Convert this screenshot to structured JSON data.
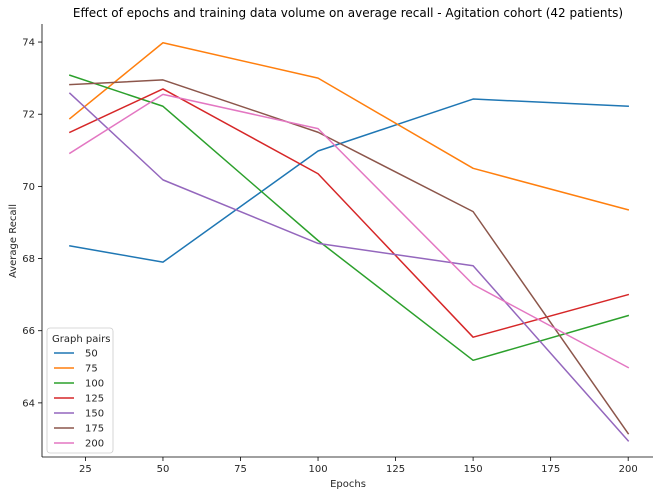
{
  "chart_data": {
    "type": "line",
    "title": "Effect of epochs and training data volume on average recall - Agitation cohort (42 patients)",
    "xlabel": "Epochs",
    "ylabel": "Average Recall",
    "x": [
      20,
      50,
      100,
      150,
      200
    ],
    "xlim": [
      11,
      208
    ],
    "ylim": [
      62.5,
      74.5
    ],
    "xticks": [
      25,
      50,
      75,
      100,
      125,
      150,
      175,
      200
    ],
    "yticks": [
      64,
      66,
      68,
      70,
      72,
      74
    ],
    "grid": false,
    "legend": {
      "title": "Graph pairs",
      "placement": "bottom-left"
    },
    "series": [
      {
        "name": "50",
        "color": "#1f77b4",
        "values": [
          68.35,
          67.9,
          70.98,
          72.42,
          72.22
        ]
      },
      {
        "name": "75",
        "color": "#ff7f0e",
        "values": [
          71.88,
          73.98,
          73.0,
          70.5,
          69.35
        ]
      },
      {
        "name": "100",
        "color": "#2ca02c",
        "values": [
          73.08,
          72.22,
          68.5,
          65.18,
          66.42
        ]
      },
      {
        "name": "125",
        "color": "#d62728",
        "values": [
          71.5,
          72.7,
          70.35,
          65.82,
          67.0
        ]
      },
      {
        "name": "150",
        "color": "#9467bd",
        "values": [
          72.58,
          70.18,
          68.42,
          67.8,
          62.95
        ]
      },
      {
        "name": "175",
        "color": "#8c564b",
        "values": [
          72.82,
          72.95,
          71.5,
          69.3,
          63.15
        ]
      },
      {
        "name": "200",
        "color": "#e377c2",
        "values": [
          70.92,
          72.55,
          71.6,
          67.28,
          64.98
        ]
      }
    ]
  }
}
